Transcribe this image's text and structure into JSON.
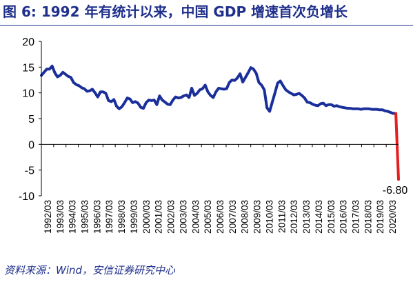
{
  "title": "图 6:   1992 年有统计以来，中国 GDP 增速首次负增长",
  "source": "资料来源：Wind，安信证券研究中心",
  "colors": {
    "line": "#1a2f9a",
    "last_segment": "#e61e1e",
    "title": "#1f2f8c",
    "axis": "#000000"
  },
  "chart_data": {
    "type": "line",
    "title": "1992 年有统计以来，中国 GDP 增速首次负增长",
    "xlabel": "",
    "ylabel": "",
    "ylim": [
      -10,
      20
    ],
    "yticks": [
      -10,
      -5,
      0,
      5,
      10,
      15,
      20
    ],
    "grid": false,
    "legend": "none",
    "x_ticks": [
      "1992/03",
      "1993/03",
      "1994/03",
      "1995/03",
      "1996/03",
      "1997/03",
      "1998/03",
      "1999/03",
      "2000/03",
      "2001/03",
      "2002/03",
      "2003/03",
      "2004/03",
      "2005/03",
      "2006/03",
      "2007/03",
      "2008/03",
      "2009/03",
      "2010/03",
      "2011/03",
      "2012/03",
      "2013/03",
      "2014/03",
      "2015/03",
      "2016/03",
      "2017/03",
      "2018/03",
      "2019/03",
      "2020/03"
    ],
    "annotation": {
      "label": "-6.80",
      "x": "2020/03",
      "y": -6.8
    },
    "series": [
      {
        "values": [
          13.4,
          14.0,
          14.6,
          14.6,
          15.2,
          13.9,
          13.1,
          13.4,
          14.0,
          13.6,
          13.2,
          13.0,
          12.0,
          11.6,
          11.4,
          11.0,
          10.8,
          10.3,
          10.4,
          10.7,
          10.0,
          9.2,
          10.2,
          10.2,
          9.9,
          8.5,
          8.3,
          8.7,
          7.4,
          6.9,
          7.3,
          8.1,
          9.0,
          8.8,
          8.1,
          8.3,
          8.0,
          7.2,
          7.0,
          8.1,
          8.6,
          8.5,
          8.6,
          7.7,
          9.4,
          8.6,
          8.2,
          7.8,
          7.7,
          8.6,
          9.2,
          9.0,
          9.1,
          9.4,
          9.6,
          9.1,
          10.9,
          9.5,
          9.9,
          10.6,
          10.8,
          11.5,
          10.2,
          9.5,
          9.1,
          10.2,
          10.9,
          10.8,
          10.7,
          10.8,
          12.0,
          12.5,
          12.4,
          12.9,
          13.7,
          12.1,
          13.0,
          13.9,
          14.9,
          14.6,
          13.8,
          12.0,
          11.5,
          10.6,
          7.1,
          6.4,
          8.2,
          10.0,
          11.9,
          12.3,
          11.4,
          10.6,
          10.2,
          9.9,
          9.6,
          9.7,
          9.9,
          9.5,
          9.0,
          8.2,
          8.1,
          7.8,
          7.6,
          7.5,
          7.9,
          8.0,
          7.5,
          7.7,
          7.7,
          7.4,
          7.5,
          7.3,
          7.2,
          7.1,
          7.0,
          7.0,
          6.9,
          6.9,
          6.9,
          6.8,
          6.9,
          6.9,
          6.9,
          6.8,
          6.8,
          6.8,
          6.7,
          6.7,
          6.5,
          6.4,
          6.2,
          6.0,
          6.0,
          -6.8
        ]
      }
    ]
  }
}
